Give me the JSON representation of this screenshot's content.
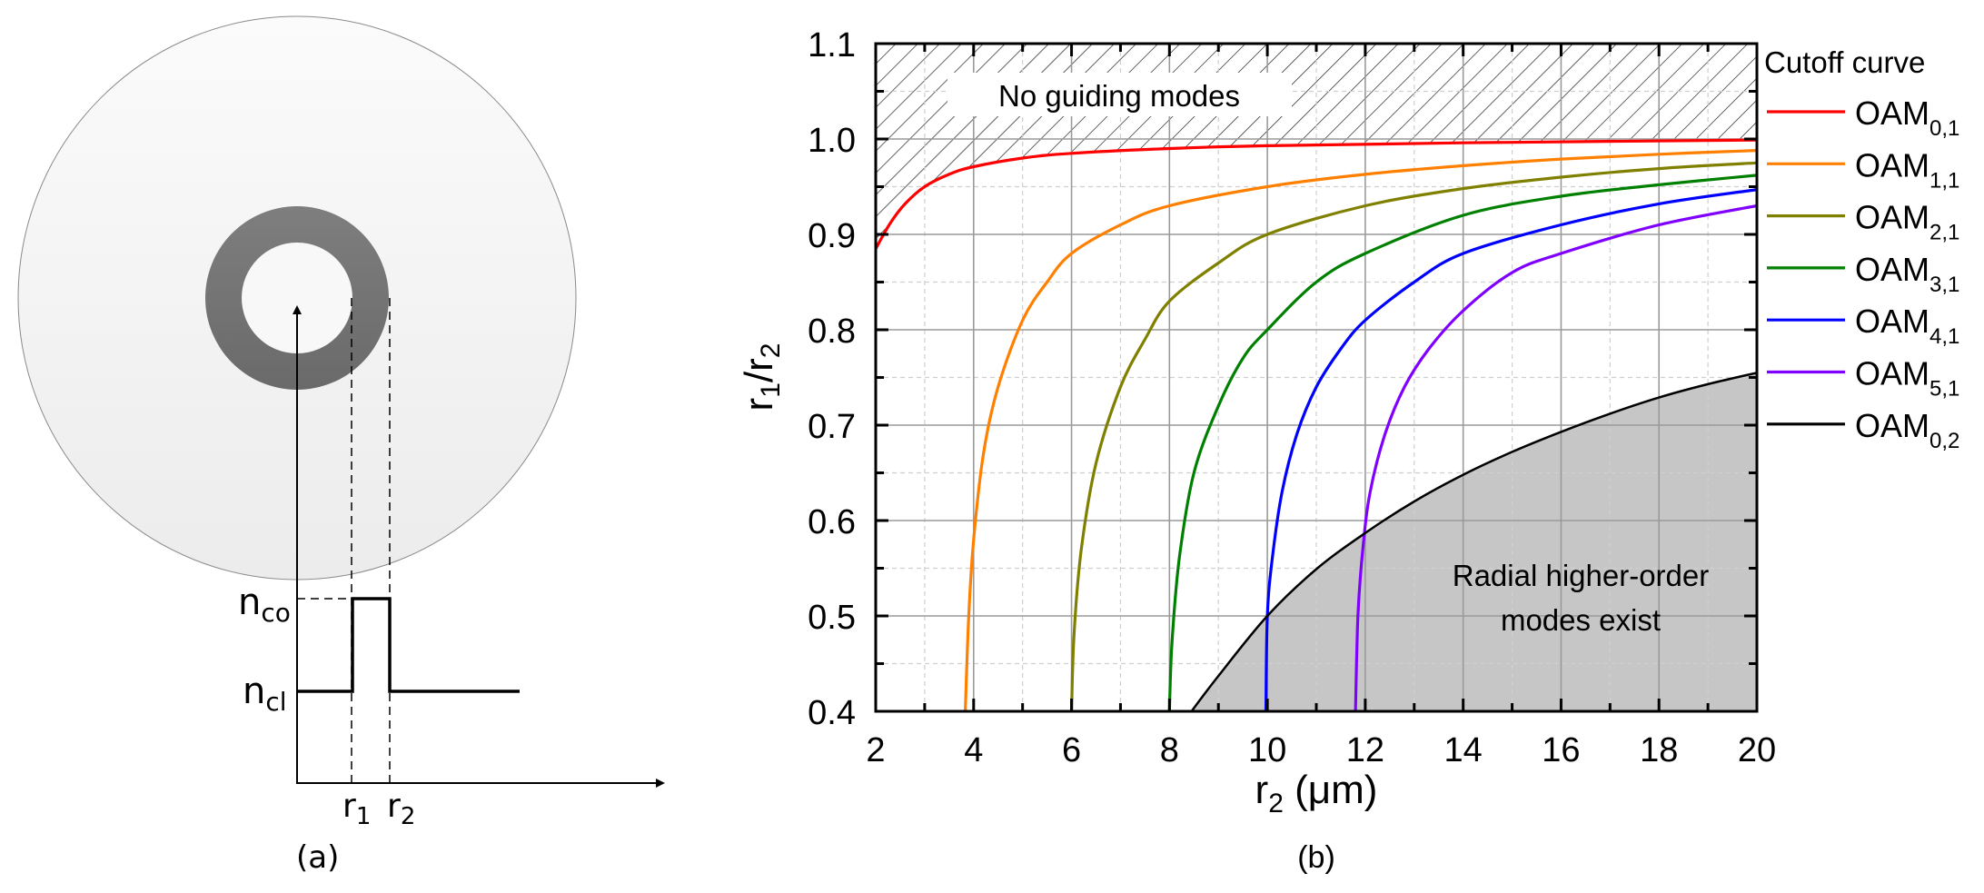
{
  "panel_a": {
    "caption": "(a)",
    "n_co_label": "n",
    "n_co_sub": "co",
    "n_cl_label": "n",
    "n_cl_sub": "cl",
    "r1_label": "r",
    "r1_sub": "1",
    "r2_label": "r",
    "r2_sub": "2",
    "colors": {
      "cladding": "#f0f0f0",
      "ring": "#777777",
      "core": "#fafafa"
    }
  },
  "panel_b": {
    "caption": "(b)",
    "region_top_label": "No guiding modes",
    "region_bottom_label_line1": "Radial higher-order",
    "region_bottom_label_line2": "modes exist",
    "legend_title": "Cutoff curve"
  },
  "chart_data": {
    "type": "line",
    "title": "",
    "xlabel": "r2 (μm)",
    "ylabel": "r1/r2",
    "xlim": [
      2,
      20
    ],
    "ylim": [
      0.4,
      1.1
    ],
    "xticks": [
      2,
      4,
      6,
      8,
      10,
      12,
      14,
      16,
      18,
      20
    ],
    "yticks": [
      0.4,
      0.5,
      0.6,
      0.7,
      0.8,
      0.9,
      1.0,
      1.1
    ],
    "grid": true,
    "legend_position": "right",
    "legend_title": "Cutoff curve",
    "annotations": [
      "No guiding modes",
      "Radial higher-order modes exist"
    ],
    "series": [
      {
        "name": "OAM0,1",
        "base": "OAM",
        "sub": "0,1",
        "color": "#ff0000",
        "x": [
          2,
          2.3,
          2.6,
          3,
          3.5,
          4,
          5,
          6,
          8,
          10,
          14,
          20
        ],
        "y": [
          0.885,
          0.912,
          0.932,
          0.95,
          0.963,
          0.971,
          0.98,
          0.985,
          0.99,
          0.993,
          0.996,
          0.999
        ]
      },
      {
        "name": "OAM1,1",
        "base": "OAM",
        "sub": "1,1",
        "color": "#ff8000",
        "x": [
          3.83,
          3.9,
          4.0,
          4.2,
          4.5,
          5,
          5.5,
          6,
          7,
          8,
          10,
          12,
          14,
          16,
          18,
          20
        ],
        "y": [
          0.4,
          0.5,
          0.58,
          0.67,
          0.74,
          0.81,
          0.85,
          0.88,
          0.91,
          0.93,
          0.95,
          0.963,
          0.972,
          0.979,
          0.984,
          0.988
        ]
      },
      {
        "name": "OAM2,1",
        "base": "OAM",
        "sub": "2,1",
        "color": "#808000",
        "x": [
          6.0,
          6.05,
          6.2,
          6.5,
          7,
          7.5,
          8,
          9,
          10,
          12,
          14,
          16,
          18,
          20
        ],
        "y": [
          0.4,
          0.48,
          0.57,
          0.66,
          0.74,
          0.79,
          0.83,
          0.87,
          0.9,
          0.93,
          0.948,
          0.96,
          0.969,
          0.975
        ]
      },
      {
        "name": "OAM3,1",
        "base": "OAM",
        "sub": "3,1",
        "color": "#008000",
        "x": [
          8.0,
          8.05,
          8.2,
          8.5,
          9,
          9.5,
          10,
          11,
          12,
          14,
          16,
          18,
          20
        ],
        "y": [
          0.4,
          0.47,
          0.56,
          0.65,
          0.72,
          0.77,
          0.8,
          0.85,
          0.88,
          0.92,
          0.94,
          0.952,
          0.962
        ]
      },
      {
        "name": "OAM4,1",
        "base": "OAM",
        "sub": "4,1",
        "color": "#0000ff",
        "x": [
          9.97,
          10.0,
          10.1,
          10.3,
          10.6,
          11,
          11.5,
          12,
          13,
          14,
          16,
          18,
          20
        ],
        "y": [
          0.4,
          0.5,
          0.56,
          0.63,
          0.69,
          0.74,
          0.78,
          0.81,
          0.85,
          0.88,
          0.91,
          0.932,
          0.947
        ]
      },
      {
        "name": "OAM5,1",
        "base": "OAM",
        "sub": "5,1",
        "color": "#8000ff",
        "x": [
          11.8,
          11.85,
          11.95,
          12.1,
          12.4,
          12.8,
          13.3,
          14,
          15,
          16,
          18,
          20
        ],
        "y": [
          0.4,
          0.5,
          0.57,
          0.63,
          0.69,
          0.74,
          0.78,
          0.82,
          0.86,
          0.88,
          0.91,
          0.93
        ]
      },
      {
        "name": "OAM0,2",
        "base": "OAM",
        "sub": "0,2",
        "color": "#000000",
        "x": [
          8.45,
          9,
          10,
          11,
          12,
          13,
          14,
          15,
          16,
          17,
          18,
          19,
          20
        ],
        "y": [
          0.4,
          0.437,
          0.5,
          0.549,
          0.587,
          0.62,
          0.648,
          0.672,
          0.693,
          0.712,
          0.729,
          0.743,
          0.755
        ]
      }
    ]
  }
}
